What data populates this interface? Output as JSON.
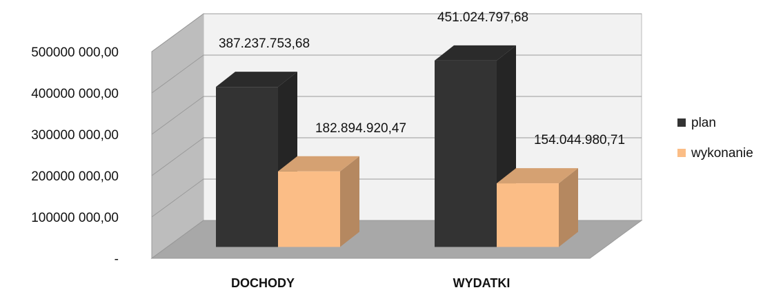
{
  "chart_data": {
    "type": "bar3d",
    "categories": [
      "DOCHODY",
      "WYDATKI"
    ],
    "series": [
      {
        "name": "plan",
        "color": "#333333",
        "values": [
          387237753.68,
          451024797.68
        ],
        "value_labels": [
          "387.237.753,68",
          "451.024.797,68"
        ]
      },
      {
        "name": "wykonanie",
        "color": "#fbbd86",
        "values": [
          182894920.47,
          154044980.71
        ],
        "value_labels": [
          "182.894.920,47",
          "154.044.980,71"
        ]
      }
    ],
    "ylim": [
      0,
      500000000
    ],
    "yticks": [
      {
        "value": 0,
        "label": "-"
      },
      {
        "value": 100000000,
        "label": "100000 000,00"
      },
      {
        "value": 200000000,
        "label": "200000 000,00"
      },
      {
        "value": 300000000,
        "label": "300000 000,00"
      },
      {
        "value": 400000000,
        "label": "400000 000,00"
      },
      {
        "value": 500000000,
        "label": "500000 000,00"
      }
    ],
    "grid": true,
    "legend": "right"
  }
}
